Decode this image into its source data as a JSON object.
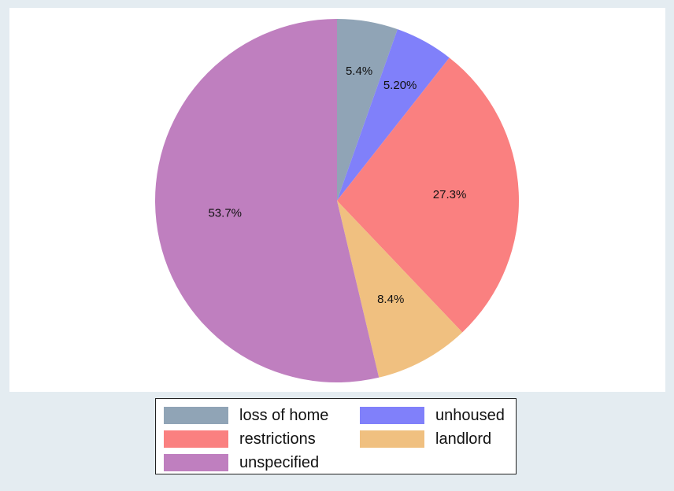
{
  "chart_data": {
    "type": "pie",
    "slices": [
      {
        "label": "loss of home",
        "value": 5.4,
        "text": "5.4%",
        "color": "#90a4b6"
      },
      {
        "label": "unhoused",
        "value": 5.2,
        "text": "5.20%",
        "color": "#8080fa"
      },
      {
        "label": "restrictions",
        "value": 27.3,
        "text": "27.3%",
        "color": "#fa8080"
      },
      {
        "label": "landlord",
        "value": 8.4,
        "text": "8.4%",
        "color": "#f0c080"
      },
      {
        "label": "unspecified",
        "value": 53.7,
        "text": "53.7%",
        "color": "#bf7fbf"
      }
    ],
    "start": "12 o'clock",
    "direction": "clockwise",
    "legend_position": "bottom"
  },
  "legend": {
    "items": [
      {
        "label": "loss of home",
        "color": "#90a4b6"
      },
      {
        "label": "unhoused",
        "color": "#8080fa"
      },
      {
        "label": "restrictions",
        "color": "#fa8080"
      },
      {
        "label": "landlord",
        "color": "#f0c080"
      },
      {
        "label": "unspecified",
        "color": "#bf7fbf"
      }
    ]
  }
}
